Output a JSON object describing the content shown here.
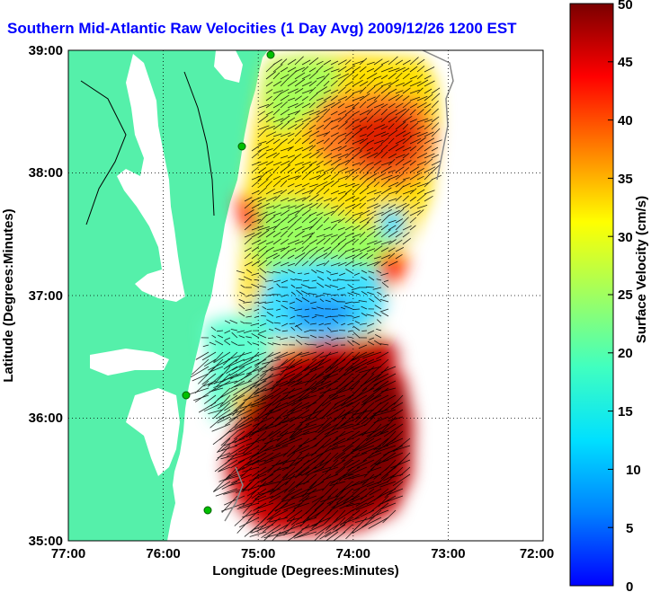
{
  "title": "Southern Mid-Atlantic Raw Velocities (1 Day Avg) 2009/12/26 1200 EST",
  "x_axis": {
    "label": "Longitude (Degrees:Minutes)",
    "ticks": [
      "77:00",
      "76:00",
      "75:00",
      "74:00",
      "73:00",
      "72:00"
    ]
  },
  "y_axis": {
    "label": "Latitude (Degrees:Minutes)",
    "ticks": [
      "39:00",
      "38:00",
      "37:00",
      "36:00",
      "35:00"
    ]
  },
  "colorbar": {
    "label": "Surface Velocity (cm/s)",
    "ticks": [
      "50",
      "45",
      "40",
      "35",
      "30",
      "25",
      "20",
      "15",
      "10",
      "5",
      "0"
    ],
    "range": [
      0,
      50
    ],
    "colormap": "jet"
  },
  "colors": {
    "land": "#55f0aa",
    "title": "#0000ff",
    "background": "#ffffff"
  },
  "map_extent": {
    "lon_min": -77,
    "lon_max": -72,
    "lat_min": 35,
    "lat_max": 39
  },
  "grid": true
}
